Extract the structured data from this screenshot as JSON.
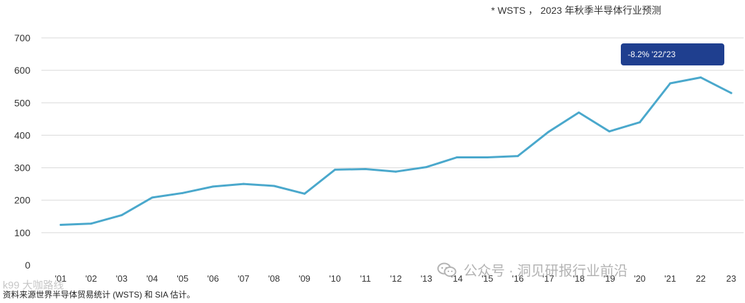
{
  "note": "* WSTS ， 2023 年秋季半导体行业预测",
  "source": "资料来源世界半导体贸易统计 (WSTS) 和 SIA 估计。",
  "watermark": {
    "text": "公众号 · 洞见研报行业前沿",
    "icon": "wechat-icon"
  },
  "corner_mark": "k99 大咖路线",
  "callout": "-8.2% '22/'23",
  "colors": {
    "line": "#4aa8cc",
    "callout_bg": "#1f3f8f",
    "grid": "#d9d9d9"
  },
  "chart_data": {
    "type": "line",
    "title": "",
    "xlabel": "",
    "ylabel": "",
    "ylim": [
      0,
      700
    ],
    "yticks": [
      0,
      100,
      200,
      300,
      400,
      500,
      600,
      700
    ],
    "grid": true,
    "categories": [
      "'01",
      "'02",
      "'03",
      "'04",
      "'05",
      "'06",
      "'07",
      "'08",
      "'09",
      "'10",
      "'11",
      "'12",
      "'13",
      "'14",
      "'15",
      "'16",
      "'17",
      "'18",
      "'19",
      "'20",
      "'21",
      "22",
      "23"
    ],
    "series": [
      {
        "values": [
          124,
          128,
          154,
          208,
          222,
          242,
          250,
          244,
          220,
          294,
          296,
          288,
          302,
          332,
          332,
          336,
          410,
          470,
          412,
          440,
          560,
          578,
          530
        ]
      }
    ]
  }
}
